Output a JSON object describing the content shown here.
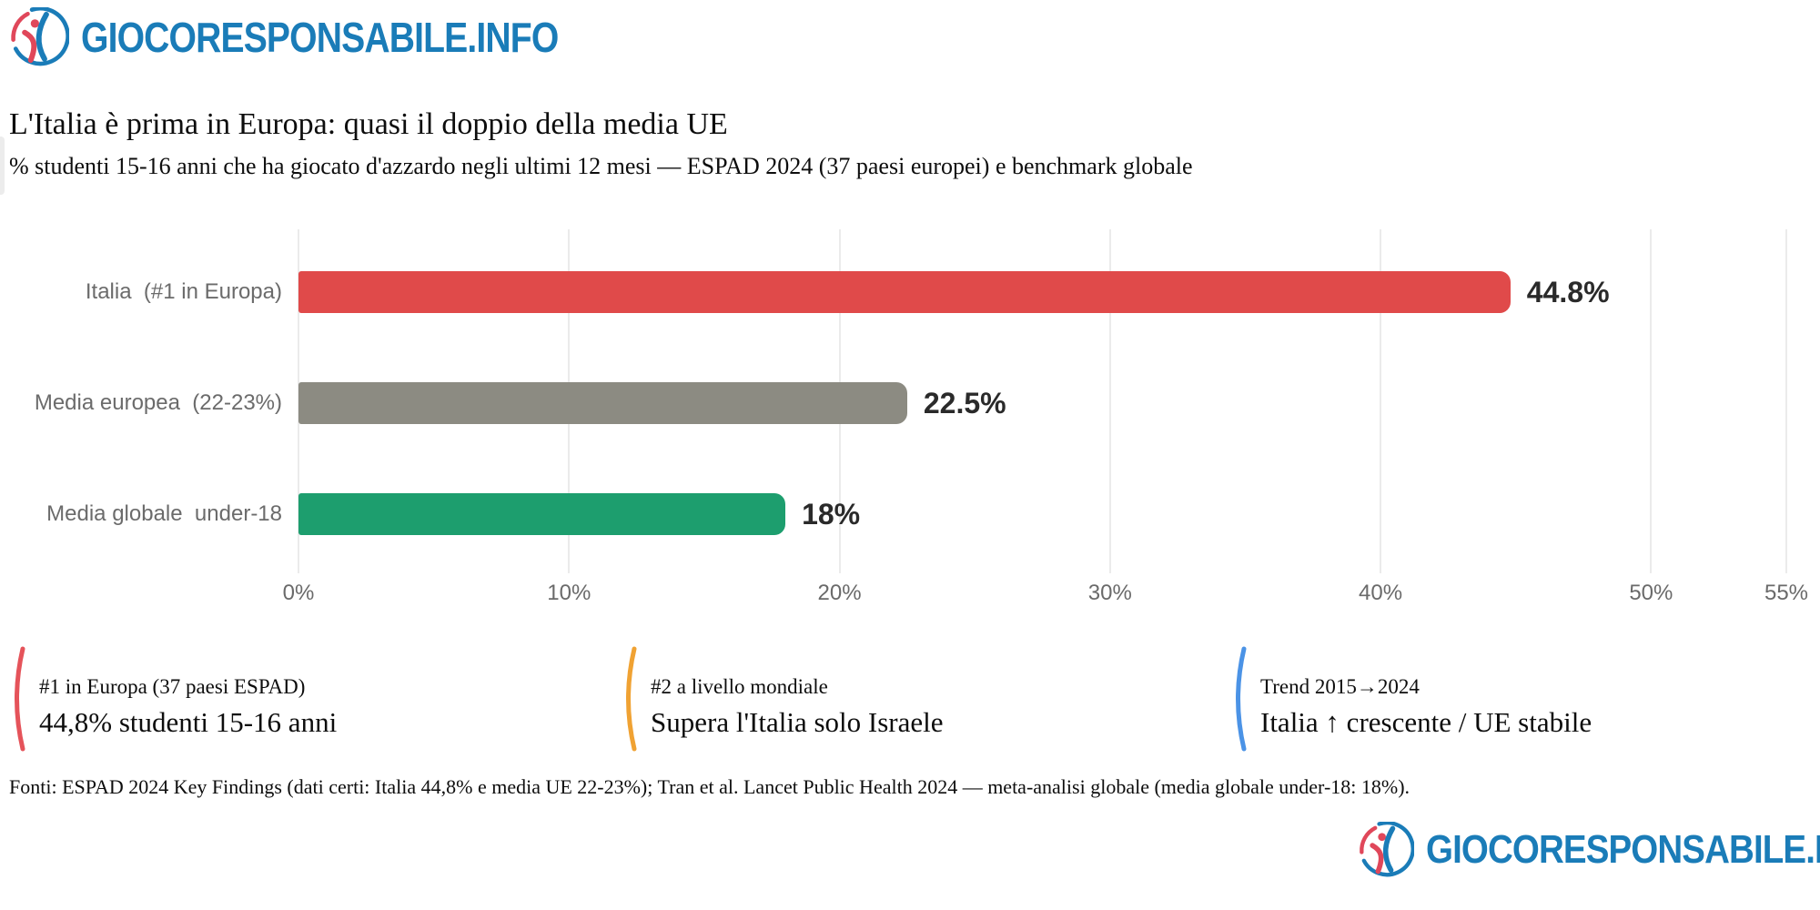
{
  "brand": {
    "name": "GIOCORESPONSABILE.INFO",
    "blue": "#1a7cb8",
    "red": "#e0475a"
  },
  "chart_data": {
    "type": "bar",
    "orientation": "horizontal",
    "title": "L'Italia è prima in Europa: quasi il doppio della media UE",
    "subtitle": "% studenti 15-16 anni che ha giocato d'azzardo negli ultimi 12 mesi — ESPAD 2024 (37 paesi europei) e benchmark globale",
    "categories": [
      "Italia  (#1 in Europa)",
      "Media europea  (22-23%)",
      "Media globale  under-18"
    ],
    "values": [
      44.8,
      22.5,
      18
    ],
    "value_labels": [
      "44.8%",
      "22.5%",
      "18%"
    ],
    "bar_colors": [
      "#e04a4a",
      "#8c8b82",
      "#1d9e6e"
    ],
    "xlim": [
      0,
      55
    ],
    "x_ticks": [
      0,
      10,
      20,
      30,
      40,
      50,
      55
    ],
    "x_tick_labels": [
      "0%",
      "10%",
      "20%",
      "30%",
      "40%",
      "50%",
      "55%"
    ],
    "grid": true,
    "legend": "none"
  },
  "callouts": [
    {
      "accent": "#e5535a",
      "title": "#1 in Europa (37 paesi ESPAD)",
      "value": "44,8% studenti 15-16 anni"
    },
    {
      "accent": "#f0a233",
      "title": "#2 a livello mondiale",
      "value": "Supera l'Italia solo Israele"
    },
    {
      "accent": "#4b93e6",
      "title": "Trend 2015→2024",
      "value": "Italia ↑ crescente / UE stabile"
    }
  ],
  "footer": {
    "source": "Fonti: ESPAD 2024 Key Findings (dati certi: Italia 44,8% e media UE 22-23%); Tran et al. Lancet Public Health 2024 — meta-analisi globale (media globale under-18: 18%)."
  }
}
